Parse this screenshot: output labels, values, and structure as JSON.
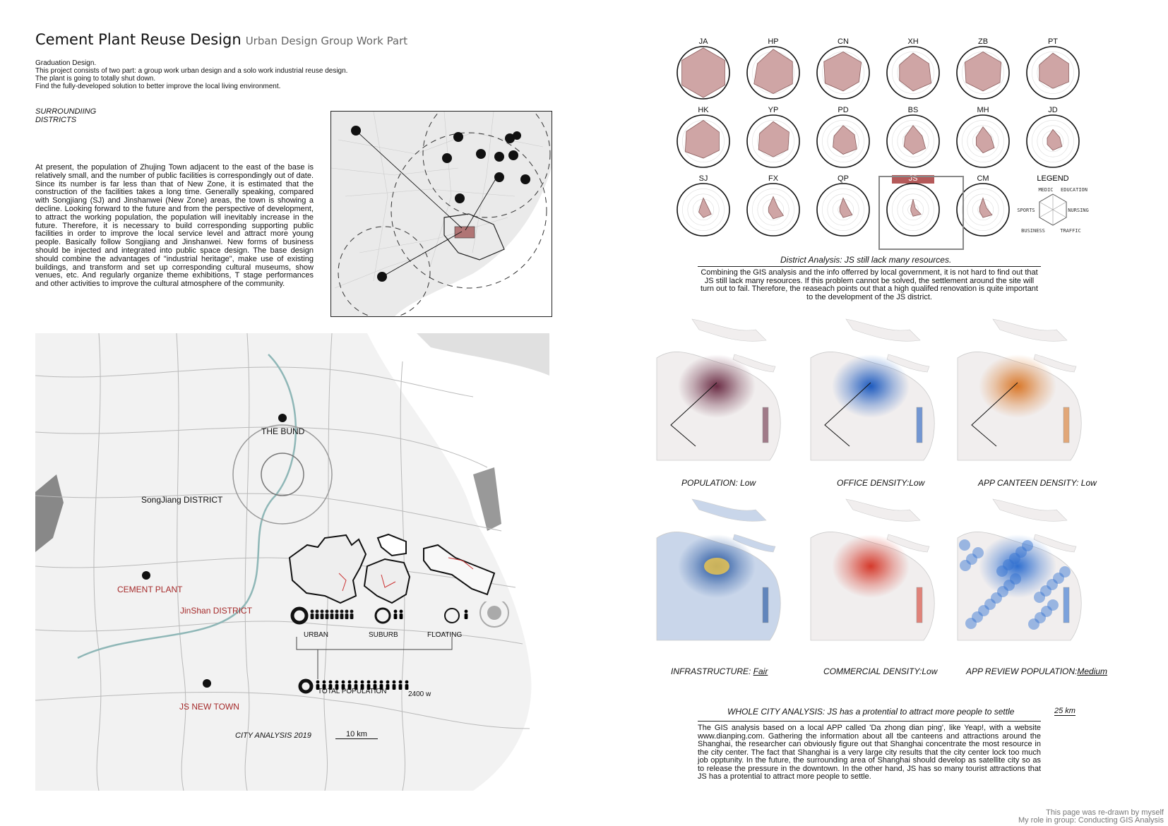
{
  "header": {
    "title": "Cement Plant Reuse Design",
    "subtitle": "Urban Design Group Work Part"
  },
  "intro": [
    "Graduation Design.",
    "This project consists of two part: a group work urban design and a solo work industrial reuse design.",
    "The plant is going to totally shut down.",
    "Find the fully-developed solution to better improve the local living environment."
  ],
  "section": {
    "line1": "SURROUNDIING",
    "line2": "DISTRICTS"
  },
  "body_text": "At present, the population of Zhujing Town adjacent to the east of the base is relatively small, and the number of public facilities is correspondingly out of date. Since its number is far less than that of New Zone, it is estimated that the construction of the facilities takes a long time. Generally speaking, compared with Songjiang (SJ) and Jinshanwei (New Zone) areas, the town is showing a decline. Looking forward to the future and from the perspective of development, to attract the working population, the population will inevitably increase in the future. Therefore, it is necessary to build corresponding supporting public facilities in order to improve the local service level and attract more young people. Basically follow Songjiang and Jinshanwei. New forms of business should be injected and integrated into public space design. The base design should combine the advantages of \"industrial heritage\", make use of existing buildings, and transform and set up corresponding cultural museums, show venues, etc. And regularly organize theme exhibitions, T stage performances and other activities to improve the cultural atmosphere of the community.",
  "radar": {
    "labels": [
      "JA",
      "HP",
      "CN",
      "XH",
      "ZB",
      "PT",
      "HK",
      "YP",
      "PD",
      "BS",
      "MH",
      "JD",
      "SJ",
      "FX",
      "QP",
      "JS",
      "CM"
    ],
    "values": [
      [
        0.95,
        0.95,
        0.95,
        0.95,
        0.95,
        0.95
      ],
      [
        0.9,
        0.85,
        0.85,
        0.8,
        0.85,
        0.7
      ],
      [
        0.8,
        0.8,
        0.7,
        0.7,
        0.8,
        0.85
      ],
      [
        0.75,
        0.7,
        0.8,
        0.7,
        0.6,
        0.6
      ],
      [
        0.8,
        0.8,
        0.75,
        0.7,
        0.75,
        0.8
      ],
      [
        0.75,
        0.7,
        0.7,
        0.6,
        0.6,
        0.6
      ],
      [
        0.8,
        0.7,
        0.7,
        0.65,
        0.8,
        0.75
      ],
      [
        0.75,
        0.7,
        0.65,
        0.6,
        0.65,
        0.6
      ],
      [
        0.6,
        0.5,
        0.6,
        0.5,
        0.45,
        0.4
      ],
      [
        0.6,
        0.4,
        0.55,
        0.5,
        0.4,
        0.35
      ],
      [
        0.55,
        0.35,
        0.5,
        0.45,
        0.3,
        0.3
      ],
      [
        0.45,
        0.3,
        0.4,
        0.35,
        0.25,
        0.25
      ],
      [
        0.45,
        0.2,
        0.35,
        0.3,
        0.2,
        0.15
      ],
      [
        0.5,
        0.2,
        0.45,
        0.35,
        0.2,
        0.2
      ],
      [
        0.45,
        0.2,
        0.4,
        0.3,
        0.15,
        0.15
      ],
      [
        0.4,
        0.1,
        0.35,
        0.25,
        0.1,
        0.1
      ],
      [
        0.45,
        0.15,
        0.4,
        0.3,
        0.15,
        0.15
      ]
    ],
    "highlight": "JS",
    "legend_title": "LEGEND",
    "legend_axes": [
      "MEDIC",
      "EDUCATION",
      "NURSING",
      "TRAFFIC",
      "BUSINESS",
      "SPORTS"
    ]
  },
  "district": {
    "caption": "District Analysis: JS still lack many resources.",
    "text": "Combining the GIS analysis and the info offerred by local government, it is not hard to find out that JS still lack many resources. If this problem cannot be solved, the settlement around the site will turn out to fail. Therefore, the reaseach points out that a high qualifed renovation is quite important to the development of the JS district."
  },
  "city_map": {
    "labels": {
      "bund": "THE BUND",
      "songjiang": "SongJiang DISTRICT",
      "cement": "CEMENT PLANT",
      "jinshan": "JinShan DISTRICT",
      "jsnew": "JS NEW TOWN"
    },
    "legend": {
      "urban": "URBAN",
      "suburb": "SUBURB",
      "floating": "FLOATING",
      "total": "TOTAL POPULATION",
      "total_value": "2400 w"
    },
    "caption": "CITY ANALYSIS 2019",
    "scale": "10 km",
    "colors": {
      "accent": "#a52a2a"
    }
  },
  "heatmaps": [
    {
      "label": "POPULATION: Low",
      "color": "#6b2d45"
    },
    {
      "label": "OFFICE DENSITY:Low",
      "color": "#1e5bbf"
    },
    {
      "label": "APP CANTEEN DENSITY: Low",
      "color": "#d9782a"
    },
    {
      "label": "INFRASTRUCTURE: ",
      "label_u": "Fair",
      "color": "#1d4f9c"
    },
    {
      "label": "COMMERCIAL DENSITY:Low",
      "color": "#d53a2c"
    },
    {
      "label": "APP REVIEW POPULATION:",
      "label_u": "Medium",
      "color": "#2f6fd0"
    }
  ],
  "whole_city": {
    "caption": "WHOLE  CITY ANALYSIS: JS has a protential to attract more people to settle",
    "scale": "25 km",
    "text": "The GIS analysis based on a local APP called 'Da zhong dian ping', like Yeap!, with a website www.dianping.com. Gathering the information about all tbe canteens and attractions around the Shanghai, the researcher can obviously figure out that Shanghai concentrate the most resource in the city center. The fact that Shanghai is a very large city results that the city center lock too much job opptunity. In the future, the surrounding area of Shanghai should develop as satellite city so as to release the pressure in the downtown. In the other hand, JS has so many tourist attractions that JS has a protential to attract more people to settle."
  },
  "footer": {
    "line1": "This page was re-drawn by myself",
    "line2": "My role in group: Conducting GIS Analysis"
  }
}
